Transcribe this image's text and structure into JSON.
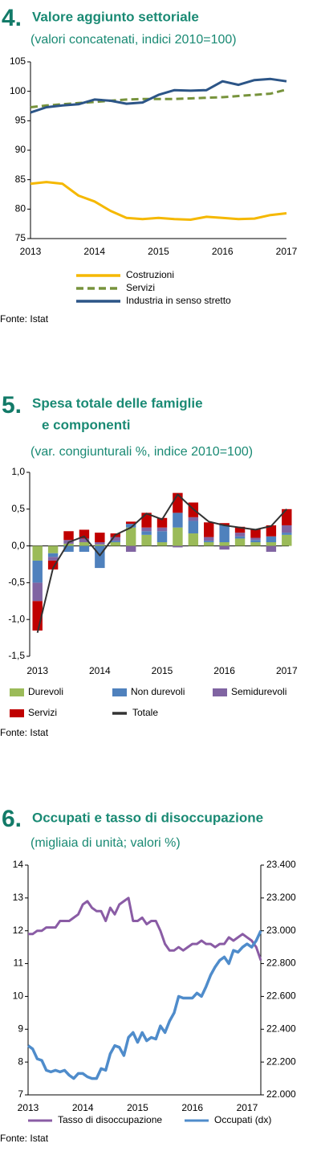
{
  "chart_data": [
    {
      "type": "line",
      "number": "4.",
      "title": "Valore aggiunto settoriale",
      "subtitle": "(valori concatenati, indici 2010=100)",
      "categories": [
        "2013",
        null,
        null,
        null,
        "2014",
        null,
        null,
        null,
        "2015",
        null,
        null,
        null,
        "2016",
        null,
        null,
        null,
        "2017"
      ],
      "ylim": [
        75,
        105
      ],
      "yticks": [
        75,
        80,
        85,
        90,
        95,
        100,
        105
      ],
      "series": [
        {
          "name": "Costruzioni",
          "color": "#f5b800",
          "values": [
            84.3,
            84.6,
            84.3,
            82.3,
            81.3,
            79.7,
            78.5,
            78.3,
            78.5,
            78.3,
            78.2,
            78.7,
            78.5,
            78.3,
            78.4,
            79.0,
            79.3
          ]
        },
        {
          "name": "Servizi",
          "color": "#77933c",
          "style": "dashed",
          "values": [
            97.3,
            97.6,
            97.8,
            98.0,
            98.2,
            98.4,
            98.6,
            98.7,
            98.7,
            98.7,
            98.8,
            98.9,
            99.0,
            99.2,
            99.4,
            99.6,
            100.3
          ]
        },
        {
          "name": "Industria in senso stretto",
          "color": "#2c5587",
          "values": [
            96.4,
            97.3,
            97.6,
            97.8,
            98.6,
            98.4,
            97.9,
            98.1,
            99.4,
            100.2,
            100.1,
            100.2,
            101.7,
            101.1,
            101.9,
            102.1,
            101.7
          ]
        }
      ],
      "source": "Fonte: Istat"
    },
    {
      "type": "bar",
      "stacked": true,
      "number": "5.",
      "title": [
        "Spesa totale delle famiglie",
        "e componenti"
      ],
      "subtitle": "(var. congiunturali %, indice 2010=100)",
      "categories": [
        "2013",
        null,
        null,
        null,
        "2014",
        null,
        null,
        null,
        "2015",
        null,
        null,
        null,
        "2016",
        null,
        null,
        null,
        "2017"
      ],
      "ylim": [
        -1.5,
        1.0
      ],
      "yticks": [
        {
          "value": -1.5,
          "label": "-1,5"
        },
        {
          "value": -1.0,
          "label": "-1,0"
        },
        {
          "value": -0.5,
          "label": "-0,5"
        },
        {
          "value": 0,
          "label": "0,0"
        },
        {
          "value": 0.5,
          "label": "0,5"
        },
        {
          "value": 1.0,
          "label": "1,0"
        }
      ],
      "series": [
        {
          "name": "Durevoli",
          "color": "#9bbb59",
          "values": [
            -0.2,
            -0.1,
            0.03,
            0.05,
            0.02,
            0.05,
            0.25,
            0.15,
            0.05,
            0.25,
            0.17,
            0.05,
            0.05,
            0.1,
            0.05,
            0.05,
            0.15
          ]
        },
        {
          "name": "Non durevoli",
          "color": "#4f81bd",
          "values": [
            -0.3,
            -0.05,
            -0.08,
            -0.08,
            -0.3,
            0.02,
            0.05,
            0.05,
            0.15,
            0.2,
            0.17,
            0.02,
            0.23,
            0.03,
            0.03,
            0.08,
            0.03
          ]
        },
        {
          "name": "Semidurevoli",
          "color": "#8064a2",
          "values": [
            -0.25,
            -0.05,
            0.05,
            0.05,
            0.03,
            0.05,
            -0.08,
            0.05,
            0.05,
            -0.02,
            0.05,
            0.05,
            -0.05,
            0.05,
            0.03,
            -0.08,
            0.1
          ]
        },
        {
          "name": "Servizi",
          "color": "#c00000",
          "values": [
            -0.4,
            -0.12,
            0.12,
            0.12,
            0.13,
            0.05,
            0.03,
            0.2,
            0.13,
            0.27,
            0.2,
            0.2,
            0.03,
            0.08,
            0.12,
            0.15,
            0.22
          ]
        },
        {
          "name": "Totale",
          "color": "#333333",
          "type": "line",
          "values": [
            -1.18,
            -0.3,
            0.05,
            0.13,
            -0.13,
            0.15,
            0.25,
            0.44,
            0.36,
            0.7,
            0.5,
            0.33,
            0.28,
            0.25,
            0.22,
            0.27,
            0.5
          ]
        }
      ],
      "source": "Fonte: Istat"
    },
    {
      "type": "line",
      "number": "6.",
      "title": "Occupati e tasso di disoccupazione",
      "subtitle": "(migliaia di unità; valori %)",
      "categories": [
        "2013",
        null,
        null,
        null,
        null,
        null,
        null,
        null,
        null,
        null,
        null,
        null,
        "2014",
        null,
        null,
        null,
        null,
        null,
        null,
        null,
        null,
        null,
        null,
        null,
        "2015",
        null,
        null,
        null,
        null,
        null,
        null,
        null,
        null,
        null,
        null,
        null,
        "2016",
        null,
        null,
        null,
        null,
        null,
        null,
        null,
        null,
        null,
        null,
        null,
        "2017",
        null,
        null,
        null
      ],
      "ylim": [
        7,
        14
      ],
      "yticks": [
        7,
        8,
        9,
        10,
        11,
        12,
        13,
        14
      ],
      "y2lim": [
        22000,
        23400
      ],
      "y2ticks": [
        {
          "value": 22000,
          "label": "22.000"
        },
        {
          "value": 22200,
          "label": "22.200"
        },
        {
          "value": 22400,
          "label": "22.400"
        },
        {
          "value": 22600,
          "label": "22.600"
        },
        {
          "value": 22800,
          "label": "22.800"
        },
        {
          "value": 23000,
          "label": "23.000"
        },
        {
          "value": 23200,
          "label": "23.200"
        },
        {
          "value": 23400,
          "label": "23.400"
        }
      ],
      "series": [
        {
          "name": "Tasso di disoccupazione",
          "color": "#8a5ca5",
          "values": [
            11.9,
            11.9,
            12.0,
            12.0,
            12.1,
            12.1,
            12.1,
            12.3,
            12.3,
            12.3,
            12.4,
            12.5,
            12.8,
            12.9,
            12.7,
            12.6,
            12.6,
            12.3,
            12.7,
            12.5,
            12.8,
            12.9,
            13.0,
            12.3,
            12.3,
            12.4,
            12.2,
            12.3,
            12.3,
            12.0,
            11.6,
            11.4,
            11.4,
            11.5,
            11.4,
            11.5,
            11.6,
            11.6,
            11.7,
            11.6,
            11.6,
            11.5,
            11.6,
            11.6,
            11.8,
            11.7,
            11.8,
            11.9,
            11.8,
            11.7,
            11.5,
            11.1
          ]
        },
        {
          "name": "Occupati (dx)",
          "color": "#4f8ccb",
          "axis": "y2",
          "values": [
            22300,
            22280,
            22220,
            22210,
            22150,
            22140,
            22150,
            22140,
            22150,
            22120,
            22100,
            22130,
            22130,
            22110,
            22100,
            22100,
            22160,
            22150,
            22250,
            22300,
            22290,
            22240,
            22350,
            22380,
            22320,
            22380,
            22330,
            22350,
            22340,
            22420,
            22380,
            22450,
            22500,
            22600,
            22590,
            22590,
            22590,
            22620,
            22600,
            22660,
            22730,
            22780,
            22820,
            22840,
            22800,
            22880,
            22870,
            22900,
            22920,
            22900,
            22940,
            23000
          ]
        }
      ],
      "source": "Fonte: Istat"
    }
  ]
}
